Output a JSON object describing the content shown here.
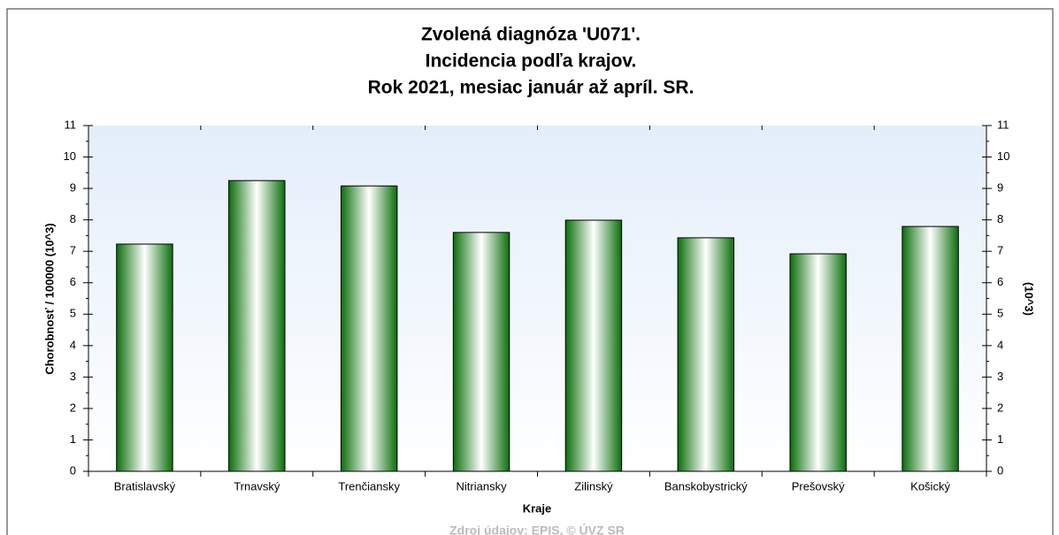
{
  "chart_data": {
    "type": "bar",
    "title": [
      "Zvolená diagnóza 'U071'.",
      "Incidencia podľa krajov.",
      "Rok 2021, mesiac január až apríl. SR."
    ],
    "ylabel": "Chorobnosť / 100000 (10^3)",
    "y2label": "(10^3)",
    "xlabel": "Kraje",
    "source": "Zdroj údajov: EPIS, © ÚVZ SR",
    "categories": [
      "Bratislavský",
      "Trnavský",
      "Trenčiansky",
      "Nitriansky",
      "Zilinský",
      "Banskobystrický",
      "Prešovský",
      "Košický"
    ],
    "values": [
      7.23,
      9.25,
      9.08,
      7.6,
      7.99,
      7.43,
      6.92,
      7.79
    ],
    "color": "#0a7a0a",
    "ylim": [
      0,
      11
    ],
    "yticks": [
      0,
      1,
      2,
      3,
      4,
      5,
      6,
      7,
      8,
      9,
      10,
      11
    ],
    "y2lim": [
      0,
      11
    ],
    "y2ticks": [
      0,
      1,
      2,
      3,
      4,
      5,
      6,
      7,
      8,
      9,
      10,
      11
    ],
    "grid": false
  }
}
